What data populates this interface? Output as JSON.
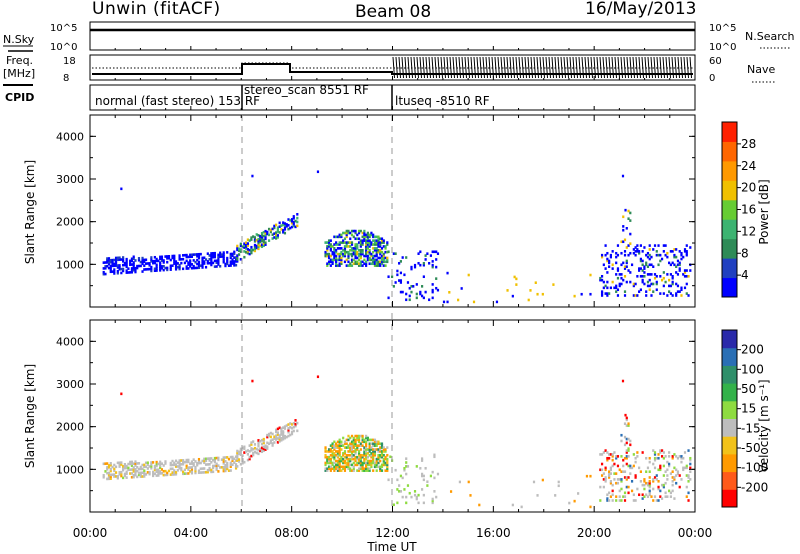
{
  "header": {
    "station": "Unwin (fitACF)",
    "beam": "Beam 08",
    "date": "16/May/2013"
  },
  "left_labels": {
    "nsky": "N.Sky",
    "freq": "Freq.",
    "mhz": "[MHz]",
    "cpid": "CPID"
  },
  "right_labels": {
    "nsearch": "N.Search",
    "nave": "Nave"
  },
  "noise_axis": {
    "left_top": "10^5",
    "left_bottom": "10^0",
    "right_top": "10^5",
    "right_bottom": "10^0"
  },
  "freq_axis": {
    "left_top": "18",
    "left_bottom": "8",
    "right_top": "60",
    "right_bottom": "0"
  },
  "cpid_segments": [
    {
      "label": "normal (fast stereo) 153 RF",
      "start": 0,
      "end": 6
    },
    {
      "label": "stereo_scan 8551 RF",
      "start": 6,
      "end": 12
    },
    {
      "label": "ltuseq -8510 RF",
      "start": 12,
      "end": 24
    }
  ],
  "colors": {
    "power": [
      "#0000ff",
      "#2040c0",
      "#2e8b57",
      "#3cb371",
      "#66cc33",
      "#f0c000",
      "#ff9900",
      "#ff6600",
      "#ff2000"
    ],
    "velocity": [
      "#ff0000",
      "#ff5a1a",
      "#ff9a00",
      "#f2c21a",
      "#bdbdbd",
      "#8edb40",
      "#33b24a",
      "#2f8f6a",
      "#2a6fb5",
      "#2a2aaa"
    ]
  },
  "chart_data": [
    {
      "type": "heatmap",
      "name": "power",
      "xlabel": "",
      "ylabel": "Slant Range [km]",
      "ylim": [
        0,
        4500
      ],
      "yticks": [
        1000,
        2000,
        3000,
        4000
      ],
      "xlim": [
        0,
        24
      ],
      "colorbar": {
        "label": "Power [dB]",
        "ticks": [
          "4",
          "8",
          "12",
          "16",
          "20",
          "24",
          "28"
        ]
      },
      "regions": [
        {
          "x": [
            0.5,
            5.8
          ],
          "y": [
            700,
            1300
          ],
          "value": "4"
        },
        {
          "x": [
            5.8,
            8.2
          ],
          "y": [
            1100,
            2100
          ],
          "value": "12"
        },
        {
          "x": [
            9.2,
            11.8
          ],
          "y": [
            1000,
            1800
          ],
          "value": "16"
        },
        {
          "x": [
            11.8,
            13.8
          ],
          "y": [
            200,
            1500
          ],
          "value": "4"
        },
        {
          "x": [
            20.2,
            23.8
          ],
          "y": [
            200,
            2100
          ],
          "value": "4"
        }
      ]
    },
    {
      "type": "heatmap",
      "name": "velocity",
      "xlabel": "Time UT",
      "ylabel": "Slant Range [km]",
      "ylim": [
        0,
        4500
      ],
      "yticks": [
        1000,
        2000,
        3000,
        4000
      ],
      "xlim": [
        0,
        24
      ],
      "xticks": [
        "00:00",
        "04:00",
        "08:00",
        "12:00",
        "16:00",
        "20:00",
        "00:00"
      ],
      "colorbar": {
        "label": "Velocity [m s⁻¹]",
        "ticks": [
          "-200",
          "-100",
          "-50",
          "-15",
          "15",
          "50",
          "100",
          "200"
        ]
      },
      "regions": [
        {
          "x": [
            0.5,
            5.8
          ],
          "y": [
            700,
            1300
          ],
          "value": "-15..15"
        },
        {
          "x": [
            5.8,
            8.2
          ],
          "y": [
            1100,
            2100
          ],
          "value": "-15..15"
        },
        {
          "x": [
            9.2,
            11.8
          ],
          "y": [
            1000,
            1800
          ],
          "value": "-50..50"
        },
        {
          "x": [
            20.2,
            23.8
          ],
          "y": [
            200,
            2100
          ],
          "value": "-15..15"
        }
      ]
    }
  ]
}
